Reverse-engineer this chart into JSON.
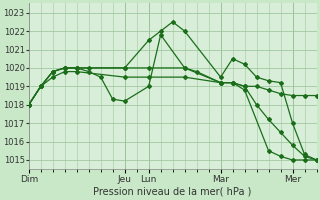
{
  "background_color": "#c8e8c8",
  "plot_bg_color": "#d8eed8",
  "grid_color": "#a0c8a0",
  "line_color": "#1a6e1a",
  "marker_color": "#1a6e1a",
  "xlabel": "Pression niveau de la mer( hPa )",
  "ylim": [
    1014.5,
    1023.5
  ],
  "yticks": [
    1015,
    1016,
    1017,
    1018,
    1019,
    1020,
    1021,
    1022,
    1023
  ],
  "x_day_labels": [
    "Dim",
    "",
    "Jeu",
    "Lun",
    "",
    "Mar",
    "",
    "Mer"
  ],
  "x_label_show": [
    0,
    8,
    10,
    16,
    22
  ],
  "x_label_names": [
    "Dim",
    "Jeu",
    "Lun",
    "Mar",
    "Mer"
  ],
  "series": [
    {
      "x": [
        0,
        1,
        2,
        3,
        4,
        5,
        8,
        10,
        11,
        12,
        13,
        16,
        17,
        18,
        19,
        20,
        21,
        22,
        23,
        24
      ],
      "y": [
        1018.0,
        1019.0,
        1019.8,
        1020.0,
        1020.0,
        1020.0,
        1020.0,
        1021.5,
        1022.0,
        1022.5,
        1022.0,
        1019.5,
        1020.5,
        1020.2,
        1019.5,
        1019.3,
        1019.2,
        1017.0,
        1015.3,
        1015.0
      ]
    },
    {
      "x": [
        0,
        1,
        2,
        3,
        4,
        5,
        6,
        7,
        8,
        10,
        11,
        13,
        16,
        17,
        18,
        20,
        21,
        22,
        23,
        24
      ],
      "y": [
        1018.0,
        1019.0,
        1019.8,
        1020.0,
        1020.0,
        1019.8,
        1019.5,
        1018.3,
        1018.2,
        1019.0,
        1021.8,
        1020.0,
        1019.2,
        1019.2,
        1018.8,
        1015.5,
        1015.2,
        1015.0,
        1015.0,
        1015.0
      ]
    },
    {
      "x": [
        0,
        1,
        2,
        3,
        4,
        8,
        10,
        13,
        14,
        16,
        17,
        18,
        19,
        20,
        21,
        22,
        23,
        24
      ],
      "y": [
        1018.0,
        1019.0,
        1019.8,
        1020.0,
        1020.0,
        1020.0,
        1020.0,
        1020.0,
        1019.8,
        1019.2,
        1019.2,
        1019.0,
        1019.0,
        1018.8,
        1018.6,
        1018.5,
        1018.5,
        1018.5
      ]
    },
    {
      "x": [
        0,
        1,
        2,
        3,
        4,
        8,
        10,
        13,
        16,
        17,
        18,
        19,
        20,
        21,
        22,
        23,
        24
      ],
      "y": [
        1018.0,
        1019.0,
        1019.5,
        1019.8,
        1019.8,
        1019.5,
        1019.5,
        1019.5,
        1019.2,
        1019.2,
        1019.0,
        1018.0,
        1017.2,
        1016.5,
        1015.8,
        1015.2,
        1015.0
      ]
    }
  ],
  "xlim": [
    0,
    24
  ],
  "figsize": [
    3.2,
    2.0
  ],
  "dpi": 100
}
